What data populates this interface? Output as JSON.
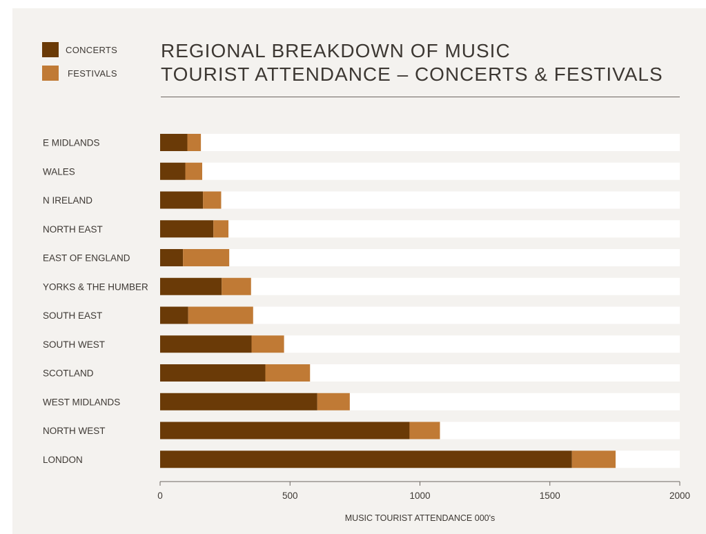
{
  "legend": {
    "concerts_label": "CONCERTS",
    "festivals_label": "FESTIVALS"
  },
  "title": {
    "line1": "REGIONAL BREAKDOWN OF MUSIC",
    "line2": "TOURIST ATTENDANCE – CONCERTS & FESTIVALS"
  },
  "colors": {
    "concerts": "#6a3a07",
    "festivals": "#c07a35",
    "track": "#ffffff",
    "background": "#f4f2ef",
    "text": "#3d3833"
  },
  "chart_data": {
    "type": "bar",
    "orientation": "horizontal",
    "stacked": true,
    "categories": [
      "E MIDLANDS",
      "WALES",
      "N IRELAND",
      "NORTH EAST",
      "EAST OF ENGLAND",
      "YORKS & THE HUMBER",
      "SOUTH EAST",
      "SOUTH WEST",
      "SCOTLAND",
      "WEST MIDLANDS",
      "NORTH WEST",
      "LONDON"
    ],
    "series": [
      {
        "name": "CONCERTS",
        "values": [
          105,
          97,
          165,
          205,
          88,
          237,
          108,
          352,
          405,
          605,
          960,
          1585
        ]
      },
      {
        "name": "FESTIVALS",
        "values": [
          52,
          65,
          70,
          58,
          178,
          113,
          250,
          125,
          172,
          125,
          117,
          168
        ]
      }
    ],
    "xlabel": "MUSIC TOURIST ATTENDANCE 000's",
    "xticks": [
      0,
      500,
      1000,
      1500,
      2000
    ],
    "xlim": [
      0,
      2000
    ],
    "legend_position": "top-left",
    "grid": false
  }
}
